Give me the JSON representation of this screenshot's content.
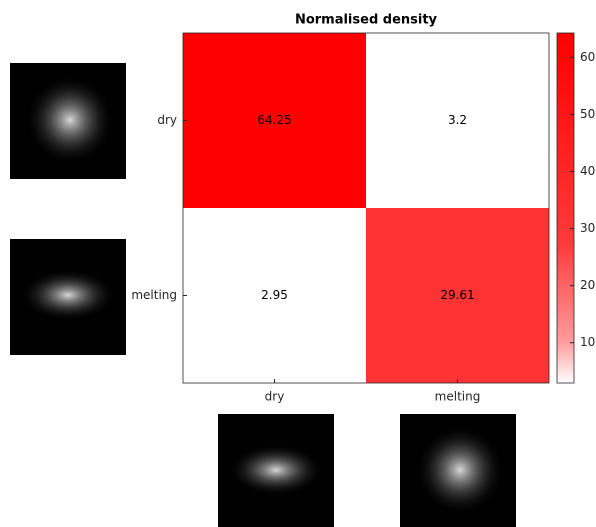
{
  "chart_data": {
    "type": "heatmap",
    "title": "Normalised density",
    "x_categories": [
      "dry",
      "melting"
    ],
    "y_categories": [
      "dry",
      "melting"
    ],
    "values": [
      [
        64.25,
        3.2
      ],
      [
        2.95,
        29.61
      ]
    ],
    "cell_colors": [
      [
        "#ff0000",
        "#ffffff"
      ],
      [
        "#ffffff",
        "#ff3333"
      ]
    ],
    "clim": [
      2.95,
      64.25
    ],
    "cticks": [
      10,
      20,
      30,
      40,
      50,
      60
    ],
    "colormap": [
      "#ffffff",
      "#ff0000"
    ]
  }
}
